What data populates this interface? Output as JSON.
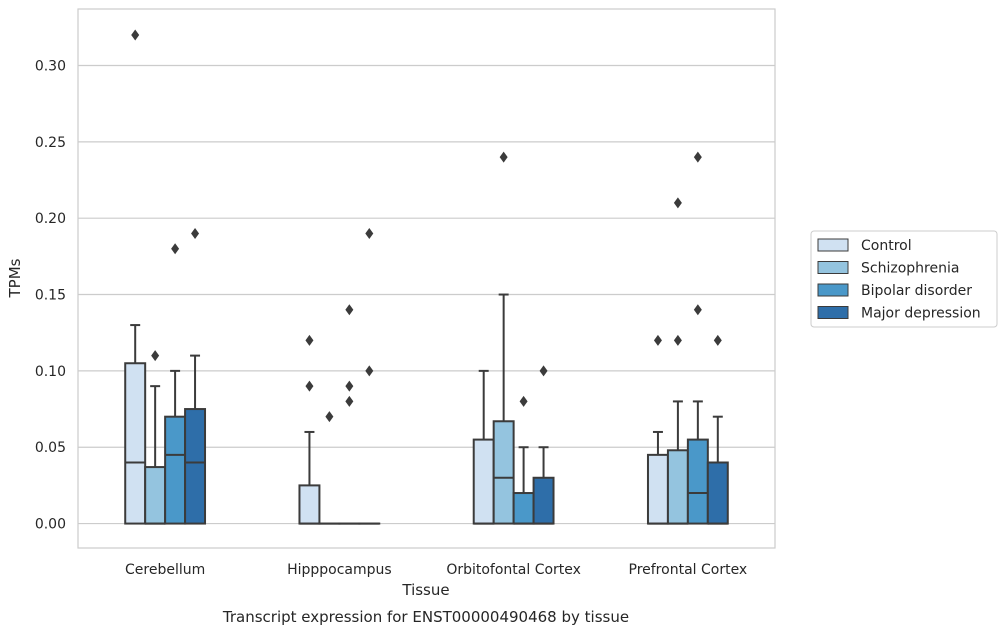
{
  "chart_data": {
    "type": "box",
    "title": "Transcript expression for ENST00000490468 by tissue",
    "xlabel": "Tissue",
    "ylabel": "TPMs",
    "ylim": [
      -0.016,
      0.337
    ],
    "yticks": [
      0.0,
      0.05,
      0.1,
      0.15,
      0.2,
      0.25,
      0.3
    ],
    "ytick_labels": [
      "0.00",
      "0.05",
      "0.10",
      "0.15",
      "0.20",
      "0.25",
      "0.30"
    ],
    "grid": "horizontal",
    "legend_position": "right",
    "categories": [
      "Cerebellum",
      "Hipppocampus",
      "Orbitofontal Cortex",
      "Prefrontal Cortex"
    ],
    "series": [
      {
        "name": "Control",
        "color": "#d0e1f2",
        "boxes": [
          {
            "whislo": 0.0,
            "q1": 0.0,
            "med": 0.04,
            "q3": 0.105,
            "whishi": 0.13,
            "fliers": [
              0.32
            ]
          },
          {
            "whislo": 0.0,
            "q1": 0.0,
            "med": 0.0,
            "q3": 0.025,
            "whishi": 0.06,
            "fliers": [
              0.09,
              0.12
            ]
          },
          {
            "whislo": 0.0,
            "q1": 0.0,
            "med": 0.0,
            "q3": 0.055,
            "whishi": 0.1,
            "fliers": []
          },
          {
            "whislo": 0.0,
            "q1": 0.0,
            "med": 0.0,
            "q3": 0.045,
            "whishi": 0.06,
            "fliers": [
              0.12
            ]
          }
        ]
      },
      {
        "name": "Schizophrenia",
        "color": "#94c4df",
        "boxes": [
          {
            "whislo": 0.0,
            "q1": 0.0,
            "med": 0.0,
            "q3": 0.037,
            "whishi": 0.09,
            "fliers": [
              0.11
            ]
          },
          {
            "whislo": 0.0,
            "q1": 0.0,
            "med": 0.0,
            "q3": 0.0,
            "whishi": 0.0,
            "fliers": [
              0.07
            ]
          },
          {
            "whislo": 0.0,
            "q1": 0.0,
            "med": 0.03,
            "q3": 0.067,
            "whishi": 0.15,
            "fliers": [
              0.24
            ]
          },
          {
            "whislo": 0.0,
            "q1": 0.0,
            "med": 0.0,
            "q3": 0.048,
            "whishi": 0.08,
            "fliers": [
              0.12,
              0.21
            ]
          }
        ]
      },
      {
        "name": "Bipolar disorder",
        "color": "#4a98c9",
        "boxes": [
          {
            "whislo": 0.0,
            "q1": 0.0,
            "med": 0.045,
            "q3": 0.07,
            "whishi": 0.1,
            "fliers": [
              0.18
            ]
          },
          {
            "whislo": 0.0,
            "q1": 0.0,
            "med": 0.0,
            "q3": 0.0,
            "whishi": 0.0,
            "fliers": [
              0.08,
              0.09,
              0.14
            ]
          },
          {
            "whislo": 0.0,
            "q1": 0.0,
            "med": 0.0,
            "q3": 0.02,
            "whishi": 0.05,
            "fliers": [
              0.08
            ]
          },
          {
            "whislo": 0.0,
            "q1": 0.0,
            "med": 0.02,
            "q3": 0.055,
            "whishi": 0.08,
            "fliers": [
              0.14,
              0.24
            ]
          }
        ]
      },
      {
        "name": "Major depression",
        "color": "#2e6ea9",
        "boxes": [
          {
            "whislo": 0.0,
            "q1": 0.0,
            "med": 0.04,
            "q3": 0.075,
            "whishi": 0.11,
            "fliers": [
              0.19
            ]
          },
          {
            "whislo": 0.0,
            "q1": 0.0,
            "med": 0.0,
            "q3": 0.0,
            "whishi": 0.0,
            "fliers": [
              0.1,
              0.19
            ]
          },
          {
            "whislo": 0.0,
            "q1": 0.0,
            "med": 0.0,
            "q3": 0.03,
            "whishi": 0.05,
            "fliers": [
              0.1
            ]
          },
          {
            "whislo": 0.0,
            "q1": 0.0,
            "med": 0.0,
            "q3": 0.04,
            "whishi": 0.07,
            "fliers": [
              0.12
            ]
          }
        ]
      }
    ]
  }
}
